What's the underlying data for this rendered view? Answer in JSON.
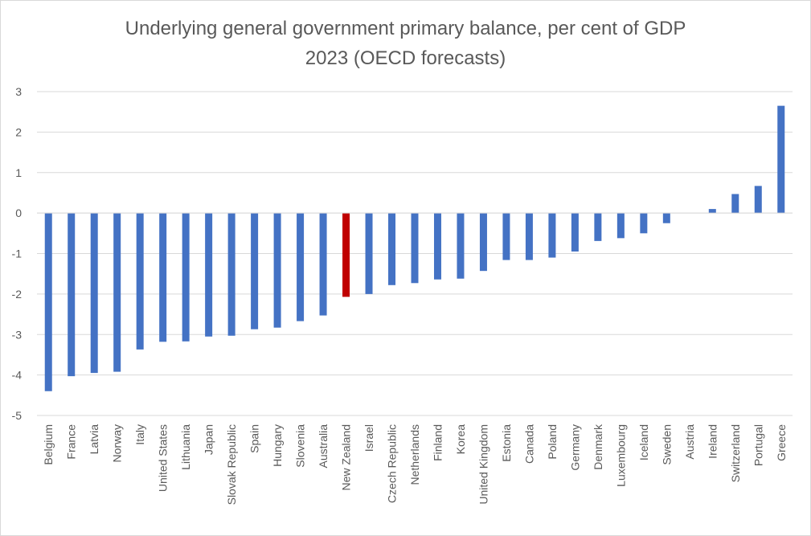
{
  "chart_data": {
    "type": "bar",
    "title": "Underlying general government primary balance, per cent of GDP",
    "subtitle": "2023  (OECD forecasts)",
    "xlabel": "",
    "ylabel": "",
    "ylim": [
      -5,
      3
    ],
    "yticks": [
      3,
      2,
      1,
      0,
      -1,
      -2,
      -3,
      -4,
      -5
    ],
    "grid": true,
    "legend": "none",
    "categories": [
      "Belgium",
      "France",
      "Latvia",
      "Norway",
      "Italy",
      "United States",
      "Lithuania",
      "Japan",
      "Slovak Republic",
      "Spain",
      "Hungary",
      "Slovenia",
      "Australia",
      "New Zealand",
      "Israel",
      "Czech Republic",
      "Netherlands",
      "Finland",
      "Korea",
      "United Kingdom",
      "Estonia",
      "Canada",
      "Poland",
      "Germany",
      "Denmark",
      "Luxembourg",
      "Iceland",
      "Sweden",
      "Austria",
      "Ireland",
      "Switzerland",
      "Portugal",
      "Greece"
    ],
    "values": [
      -4.4,
      -4.03,
      -3.95,
      -3.92,
      -3.37,
      -3.18,
      -3.17,
      -3.05,
      -3.03,
      -2.87,
      -2.83,
      -2.67,
      -2.53,
      -2.07,
      -2.0,
      -1.78,
      -1.73,
      -1.64,
      -1.62,
      -1.43,
      -1.16,
      -1.16,
      -1.1,
      -0.95,
      -0.69,
      -0.62,
      -0.5,
      -0.25,
      0.0,
      0.1,
      0.47,
      0.67,
      2.65
    ],
    "highlight": "New Zealand",
    "colors": {
      "bar": "#4472c4",
      "highlight": "#c00000",
      "grid": "#d9d9d9",
      "text": "#595959"
    }
  }
}
